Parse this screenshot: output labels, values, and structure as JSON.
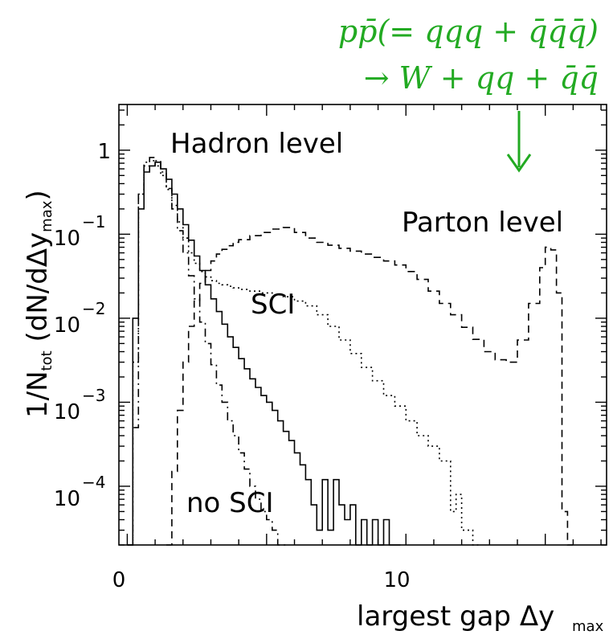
{
  "chart_data": {
    "type": "line",
    "title": "",
    "xlabel": "largest gap Δy",
    "xlabel_sub": "max",
    "ylabel": "1/N",
    "ylabel_sub_tot": "tot",
    "ylabel_rest": " (dN/dΔy",
    "ylabel_sub_max": "max",
    "ylabel_close": ")",
    "x_ticks": [
      {
        "value": 0,
        "label": "0"
      },
      {
        "value": 10,
        "label": "10"
      }
    ],
    "y_ticks": [
      {
        "value": 1,
        "label": "1",
        "exp": ""
      },
      {
        "value": 0.1,
        "label": "10",
        "exp": "−1"
      },
      {
        "value": 0.01,
        "label": "10",
        "exp": "−2"
      },
      {
        "value": 0.001,
        "label": "10",
        "exp": "−3"
      },
      {
        "value": 0.0001,
        "label": "10",
        "exp": "−4"
      }
    ],
    "xlim": [
      -0.3,
      17.2
    ],
    "ylim": [
      2e-05,
      3.5
    ],
    "y_scale": "log",
    "annotations": {
      "hadron": "Hadron level",
      "parton": "Parton level",
      "sci": "SCI",
      "nosci": "no SCI",
      "process_line1": "pp̄(= qqq + q̄q̄q̄)",
      "process_line2": "→ W + qq + q̄q̄",
      "accent_color": "#22aa22"
    },
    "series": [
      {
        "style": "solid",
        "x": [
          0.0,
          0.2,
          0.4,
          0.6,
          0.8,
          1.0,
          1.2,
          1.4,
          1.6,
          1.8,
          2.0,
          2.2,
          2.4,
          2.6,
          2.8,
          3.0,
          3.2,
          3.4,
          3.6,
          3.8,
          4.0,
          4.2,
          4.4,
          4.6,
          4.8,
          5.0,
          5.2,
          5.4,
          5.6,
          5.8,
          6.0,
          6.2,
          6.4,
          6.6,
          6.8,
          7.0,
          7.2,
          7.4,
          7.6,
          7.8,
          8.0,
          8.2,
          8.4,
          8.6,
          8.8,
          9.0,
          9.2,
          9.4,
          9.6
        ],
        "y": [
          2e-05,
          0.01,
          0.2,
          0.55,
          0.65,
          0.72,
          0.6,
          0.45,
          0.3,
          0.2,
          0.13,
          0.085,
          0.055,
          0.037,
          0.025,
          0.017,
          0.012,
          0.0085,
          0.006,
          0.0045,
          0.0033,
          0.0025,
          0.0019,
          0.0015,
          0.0012,
          0.001,
          0.0008,
          0.0006,
          0.00045,
          0.00035,
          0.00025,
          0.00018,
          0.00012,
          6e-05,
          3e-05,
          0.00012,
          3e-05,
          0.00012,
          6e-05,
          4e-05,
          6e-05,
          2e-05,
          4e-05,
          2e-05,
          4e-05,
          2e-05,
          4e-05,
          2e-05,
          2e-05
        ]
      },
      {
        "style": "dashdot",
        "x": [
          0.0,
          0.2,
          0.4,
          0.6,
          0.8,
          1.0,
          1.2,
          1.4,
          1.6,
          1.8,
          2.0,
          2.2,
          2.4,
          2.6,
          2.8,
          3.0,
          3.2,
          3.4,
          3.6,
          3.8,
          4.0,
          4.2,
          4.4,
          4.6,
          4.8,
          5.0,
          5.2,
          5.4,
          5.6
        ],
        "y": [
          2e-05,
          0.0005,
          0.3,
          0.72,
          0.82,
          0.75,
          0.55,
          0.35,
          0.2,
          0.11,
          0.06,
          0.032,
          0.017,
          0.009,
          0.005,
          0.0028,
          0.0016,
          0.001,
          0.0006,
          0.0004,
          0.00025,
          0.00016,
          0.0001,
          7e-05,
          5e-05,
          4e-05,
          3e-05,
          2e-05,
          2e-05
        ]
      },
      {
        "style": "dotted",
        "x": [
          0.0,
          0.2,
          0.4,
          0.6,
          0.8,
          1.0,
          1.2,
          1.4,
          1.6,
          1.8,
          2.0,
          2.2,
          2.4,
          2.6,
          2.8,
          3.0,
          3.2,
          3.4,
          3.6,
          3.8,
          4.0,
          4.4,
          4.8,
          5.2,
          5.6,
          6.0,
          6.4,
          6.8,
          7.2,
          7.6,
          8.0,
          8.4,
          8.8,
          9.2,
          9.6,
          10.0,
          10.4,
          10.8,
          11.2,
          11.6,
          11.8,
          12.0,
          12.4
        ],
        "y": [
          2e-05,
          0.003,
          0.3,
          0.65,
          0.75,
          0.65,
          0.5,
          0.34,
          0.22,
          0.14,
          0.09,
          0.06,
          0.045,
          0.036,
          0.031,
          0.028,
          0.026,
          0.025,
          0.024,
          0.023,
          0.022,
          0.021,
          0.02,
          0.019,
          0.018,
          0.016,
          0.014,
          0.011,
          0.008,
          0.0055,
          0.0038,
          0.0026,
          0.0018,
          0.0012,
          0.0009,
          0.0006,
          0.0004,
          0.0003,
          0.0002,
          5e-05,
          8e-05,
          3e-05,
          2e-05
        ]
      },
      {
        "style": "dashed",
        "x": [
          1.4,
          1.6,
          1.8,
          2.0,
          2.2,
          2.4,
          2.6,
          2.8,
          3.0,
          3.2,
          3.4,
          3.6,
          3.8,
          4.0,
          4.4,
          4.8,
          5.2,
          5.6,
          6.0,
          6.4,
          6.8,
          7.2,
          7.6,
          8.0,
          8.4,
          8.8,
          9.2,
          9.6,
          10.0,
          10.4,
          10.8,
          11.2,
          11.6,
          12.0,
          12.4,
          12.8,
          13.2,
          13.6,
          14.0,
          14.4,
          14.8,
          15.0,
          15.2,
          15.4,
          15.6,
          15.8
        ],
        "y": [
          2e-05,
          0.00015,
          0.0008,
          0.003,
          0.008,
          0.016,
          0.026,
          0.037,
          0.048,
          0.058,
          0.066,
          0.073,
          0.08,
          0.086,
          0.096,
          0.105,
          0.115,
          0.12,
          0.105,
          0.09,
          0.08,
          0.074,
          0.068,
          0.063,
          0.058,
          0.053,
          0.048,
          0.043,
          0.036,
          0.029,
          0.021,
          0.015,
          0.011,
          0.0078,
          0.0056,
          0.004,
          0.0032,
          0.003,
          0.0055,
          0.015,
          0.04,
          0.07,
          0.065,
          0.02,
          5e-05,
          2e-05
        ]
      }
    ]
  }
}
